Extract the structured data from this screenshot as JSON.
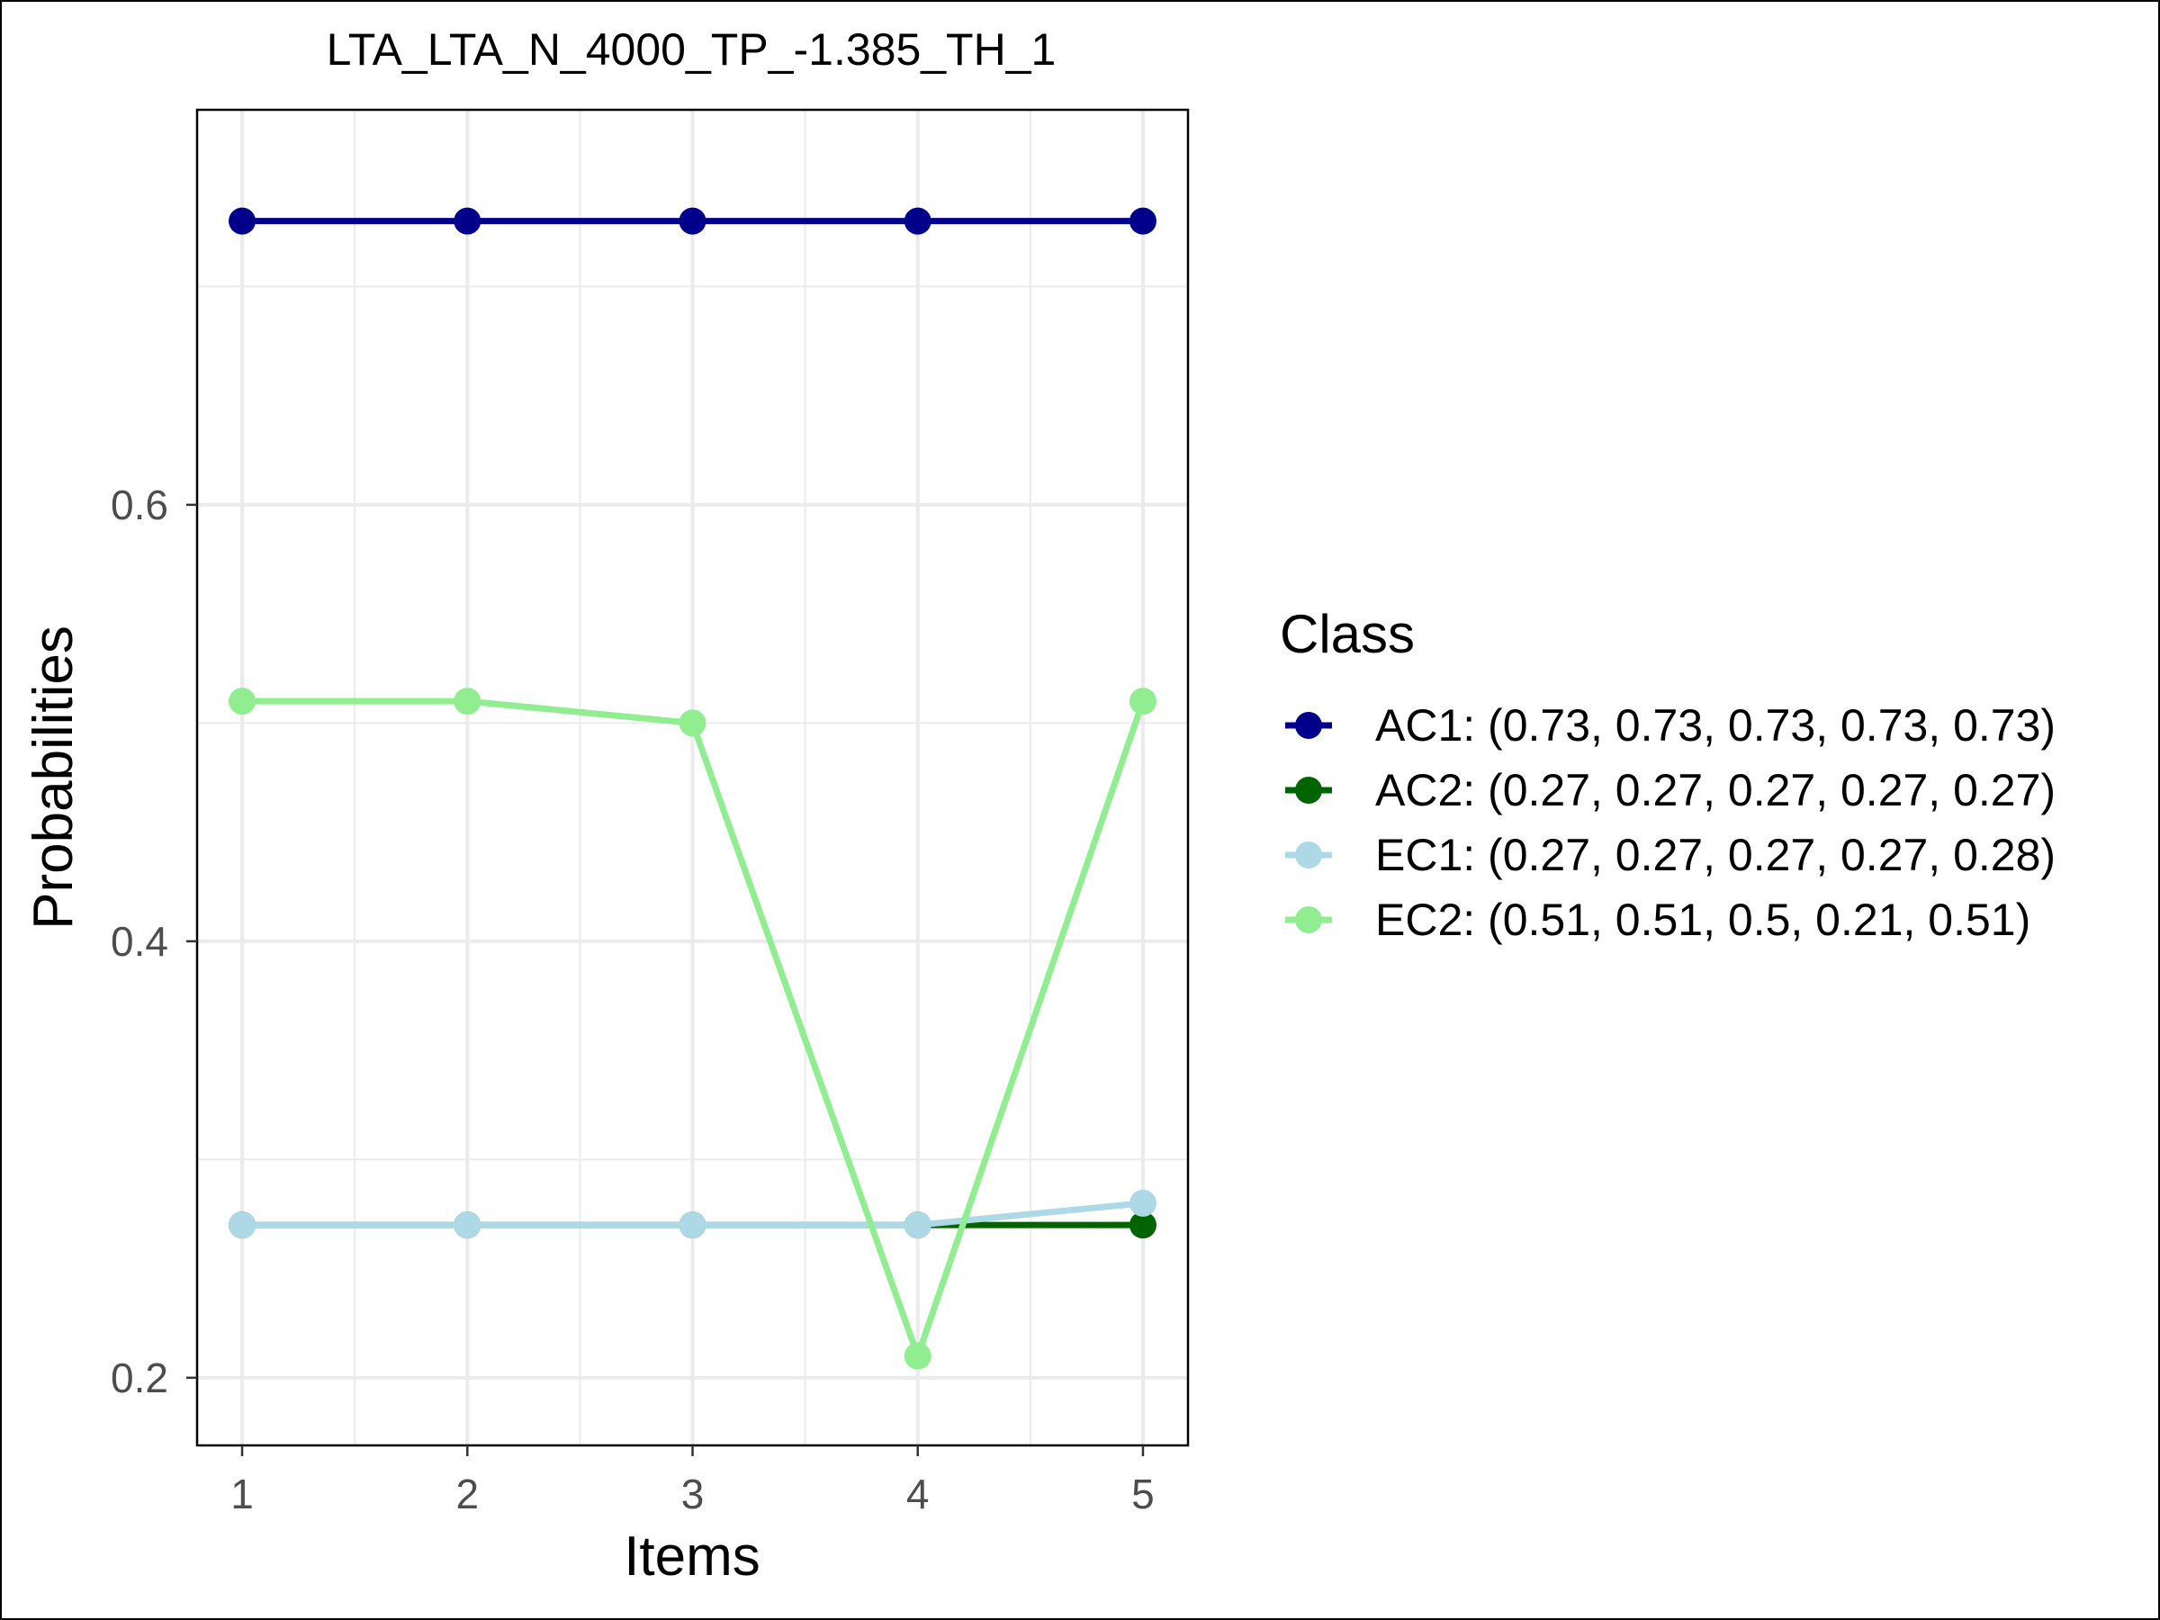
{
  "chart_data": {
    "type": "line",
    "title": "LTA_LTA_N_4000_TP_-1.385_TH_1",
    "xlabel": "Items",
    "ylabel": "Probabilities",
    "x": [
      1,
      2,
      3,
      4,
      5
    ],
    "x_tick_labels": [
      "1",
      "2",
      "3",
      "4",
      "5"
    ],
    "y_ticks": [
      0.2,
      0.4,
      0.6
    ],
    "y_tick_labels": [
      "0.2",
      "0.4",
      "0.6"
    ],
    "xlim": [
      0.8,
      5.2
    ],
    "ylim": [
      0.169,
      0.781
    ],
    "grid": true,
    "legend": {
      "title": "Class",
      "placement": "right"
    },
    "series": [
      {
        "name": "AC1",
        "label": "AC1: (0.73, 0.73, 0.73, 0.73, 0.73)",
        "color": "#00008b",
        "values": [
          0.73,
          0.73,
          0.73,
          0.73,
          0.73
        ]
      },
      {
        "name": "AC2",
        "label": "AC2: (0.27, 0.27, 0.27, 0.27, 0.27)",
        "color": "#006400",
        "values": [
          0.27,
          0.27,
          0.27,
          0.27,
          0.27
        ]
      },
      {
        "name": "EC1",
        "label": "EC1: (0.27, 0.27, 0.27, 0.27, 0.28)",
        "color": "#add8e6",
        "values": [
          0.27,
          0.27,
          0.27,
          0.27,
          0.28
        ]
      },
      {
        "name": "EC2",
        "label": "EC2: (0.51, 0.51, 0.5, 0.21, 0.51)",
        "color": "#90ee90",
        "values": [
          0.51,
          0.51,
          0.5,
          0.21,
          0.51
        ]
      }
    ]
  }
}
